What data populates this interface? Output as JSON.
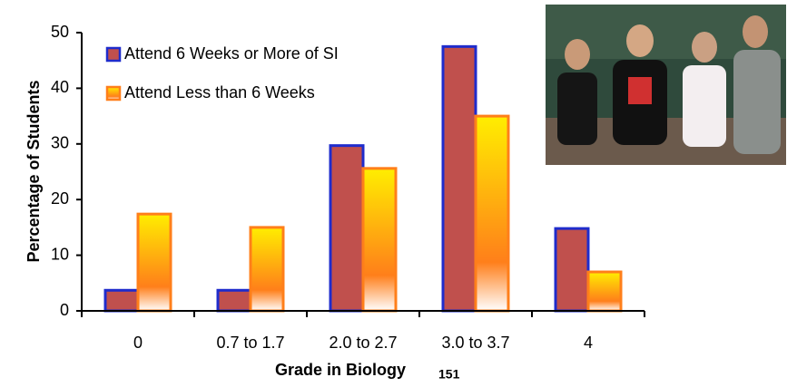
{
  "chart_data": {
    "type": "bar",
    "xlabel": "Grade in Biology",
    "xlabel_sub": "151",
    "ylabel": "Percentage of Students",
    "categories": [
      "0",
      "0.7 to 1.7",
      "2.0 to 2.7",
      "3.0 to 3.7",
      "4"
    ],
    "series": [
      {
        "name": "Attend 6 Weeks or More of SI",
        "color": "#c0504d",
        "edgecolor": "#1f2ccc",
        "values": [
          3.7,
          3.7,
          29.7,
          47.5,
          14.8
        ]
      },
      {
        "name": "Attend Less than 6 Weeks",
        "color": "#ffee00",
        "edgecolor": "#ff7f1a",
        "values": [
          17.4,
          15,
          25.6,
          35,
          7
        ]
      }
    ],
    "ylim": [
      0,
      50
    ],
    "yticks": [
      0,
      10,
      20,
      30,
      40,
      50
    ],
    "grid": false,
    "legend": "upper left"
  }
}
